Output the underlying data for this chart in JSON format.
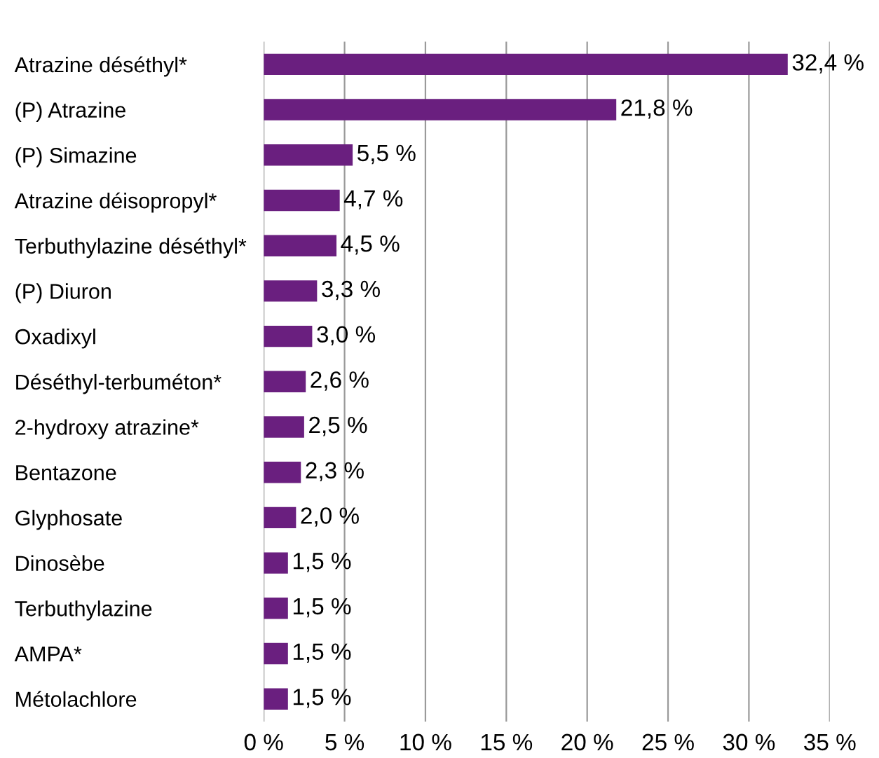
{
  "chart_data": {
    "type": "bar",
    "orientation": "horizontal",
    "categories": [
      "Atrazine déséthyl*",
      "(P) Atrazine",
      "(P) Simazine",
      "Atrazine déisopropyl*",
      "Terbuthylazine déséthyl*",
      "(P) Diuron",
      "Oxadixyl",
      "Déséthyl-terbuméton*",
      "2-hydroxy atrazine*",
      "Bentazone",
      "Glyphosate",
      "Dinosèbe",
      "Terbuthylazine",
      "AMPA*",
      "Métolachlore"
    ],
    "values": [
      32.4,
      21.8,
      5.5,
      4.7,
      4.5,
      3.3,
      3.0,
      2.6,
      2.5,
      2.3,
      2.0,
      1.5,
      1.5,
      1.5,
      1.5
    ],
    "value_labels": [
      "32,4 %",
      "21,8 %",
      "5,5 %",
      "4,7 %",
      "4,5 %",
      "3,3 %",
      "3,0 %",
      "2,6 %",
      "2,5 %",
      "2,3 %",
      "2,0 %",
      "1,5 %",
      "1,5 %",
      "1,5 %",
      "1,5 %"
    ],
    "color": "#6a1f7f",
    "xlim": [
      0,
      35
    ],
    "xticks": [
      {
        "value": 0,
        "label": "0 %"
      },
      {
        "value": 5,
        "label": "5 %"
      },
      {
        "value": 10,
        "label": "10 %"
      },
      {
        "value": 15,
        "label": "15 %"
      },
      {
        "value": 20,
        "label": "20 %"
      },
      {
        "value": 25,
        "label": "25 %"
      },
      {
        "value": 30,
        "label": "30 %"
      },
      {
        "value": 35,
        "label": "35 %"
      }
    ],
    "grid": "x",
    "legend": false
  }
}
